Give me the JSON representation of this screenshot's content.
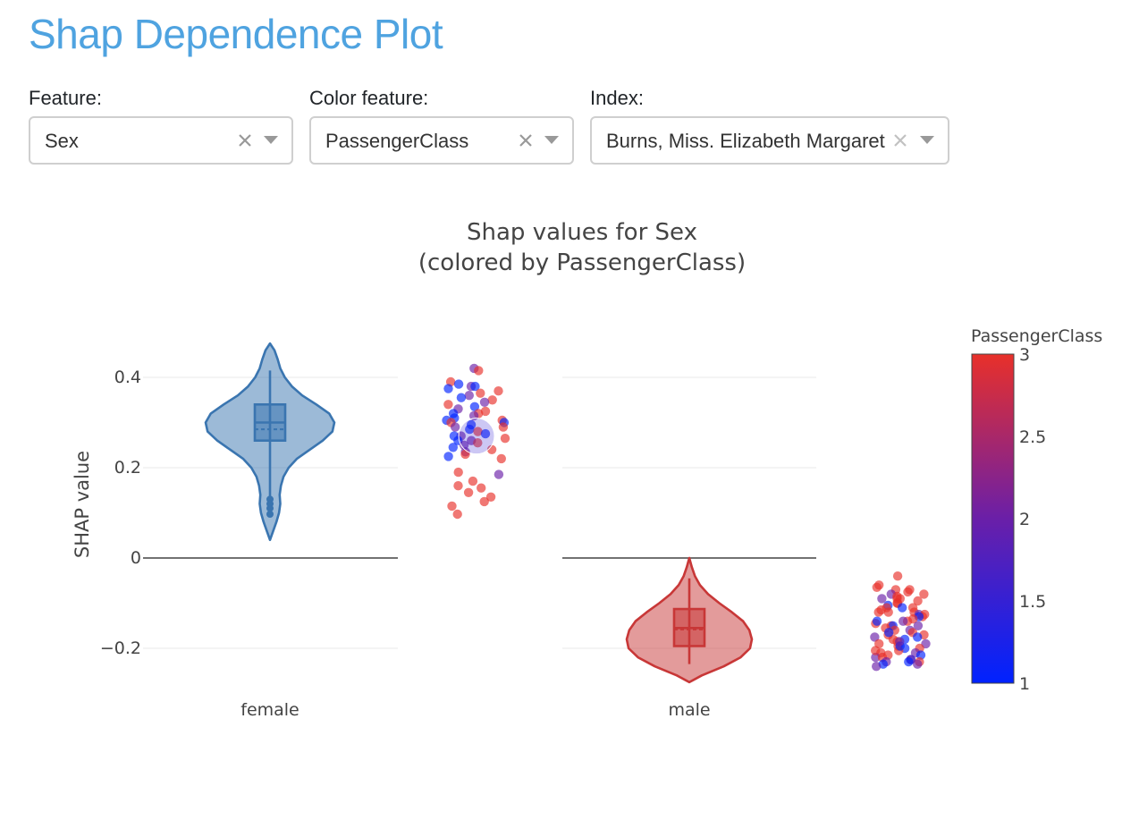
{
  "page": {
    "title": "Shap Dependence Plot"
  },
  "controls": {
    "feature": {
      "label": "Feature:",
      "value": "Sex"
    },
    "color_feature": {
      "label": "Color feature:",
      "value": "PassengerClass"
    },
    "index": {
      "label": "Index:",
      "value": "Burns, Miss. Elizabeth Margaret"
    }
  },
  "colors": {
    "title": "#4fa3e0",
    "female_violin": "#3a75b0",
    "male_violin": "#c83737",
    "colorscale_low": "#0022ff",
    "colorscale_high": "#e8302a"
  },
  "chart_data": {
    "type": "violin",
    "title": "Shap values for Sex",
    "subtitle": "(colored by PassengerClass)",
    "ylabel": "SHAP value",
    "ylim": [
      -0.28,
      0.48
    ],
    "yticks": [
      0.4,
      0.2,
      0,
      -0.2
    ],
    "ytick_labels": [
      "0.4",
      "0.2",
      "0",
      "−0.2"
    ],
    "grid": true,
    "categories": [
      "female",
      "male"
    ],
    "violins": [
      {
        "category": "female",
        "range": [
          0.04,
          0.475
        ],
        "q1": 0.26,
        "median": 0.3,
        "q3": 0.34,
        "mean": 0.285,
        "whisker_low": 0.135,
        "whisker_high": 0.415,
        "outliers": [
          0.13,
          0.12,
          0.11,
          0.097
        ],
        "density": [
          [
            0.04,
            0.0
          ],
          [
            0.06,
            0.05
          ],
          [
            0.08,
            0.1
          ],
          [
            0.1,
            0.14
          ],
          [
            0.12,
            0.16
          ],
          [
            0.14,
            0.15
          ],
          [
            0.16,
            0.17
          ],
          [
            0.18,
            0.21
          ],
          [
            0.2,
            0.29
          ],
          [
            0.22,
            0.42
          ],
          [
            0.24,
            0.62
          ],
          [
            0.26,
            0.82
          ],
          [
            0.28,
            0.97
          ],
          [
            0.3,
            1.0
          ],
          [
            0.32,
            0.92
          ],
          [
            0.34,
            0.72
          ],
          [
            0.36,
            0.5
          ],
          [
            0.38,
            0.34
          ],
          [
            0.4,
            0.23
          ],
          [
            0.42,
            0.16
          ],
          [
            0.44,
            0.12
          ],
          [
            0.46,
            0.07
          ],
          [
            0.475,
            0.0
          ]
        ]
      },
      {
        "category": "male",
        "range": [
          -0.275,
          -0.0
        ],
        "q1": -0.195,
        "median": -0.155,
        "q3": -0.113,
        "mean": -0.158,
        "whisker_low": -0.235,
        "whisker_high": -0.045,
        "outliers": [],
        "density": [
          [
            -0.275,
            0.0
          ],
          [
            -0.26,
            0.2
          ],
          [
            -0.24,
            0.55
          ],
          [
            -0.22,
            0.82
          ],
          [
            -0.2,
            0.97
          ],
          [
            -0.18,
            1.0
          ],
          [
            -0.16,
            0.96
          ],
          [
            -0.14,
            0.86
          ],
          [
            -0.12,
            0.68
          ],
          [
            -0.1,
            0.48
          ],
          [
            -0.08,
            0.3
          ],
          [
            -0.06,
            0.17
          ],
          [
            -0.04,
            0.09
          ],
          [
            -0.02,
            0.04
          ],
          [
            0.0,
            0.0
          ]
        ]
      }
    ],
    "scatter": [
      {
        "category": "female",
        "points": [
          [
            0.42,
            2
          ],
          [
            0.415,
            3
          ],
          [
            0.39,
            3
          ],
          [
            0.385,
            1
          ],
          [
            0.38,
            2
          ],
          [
            0.38,
            1
          ],
          [
            0.375,
            1
          ],
          [
            0.37,
            3
          ],
          [
            0.365,
            3
          ],
          [
            0.36,
            2
          ],
          [
            0.355,
            1
          ],
          [
            0.35,
            3
          ],
          [
            0.345,
            2
          ],
          [
            0.34,
            3
          ],
          [
            0.335,
            1
          ],
          [
            0.33,
            2
          ],
          [
            0.325,
            3
          ],
          [
            0.32,
            1
          ],
          [
            0.32,
            3
          ],
          [
            0.315,
            2
          ],
          [
            0.31,
            1
          ],
          [
            0.305,
            1
          ],
          [
            0.305,
            3
          ],
          [
            0.3,
            1
          ],
          [
            0.3,
            3
          ],
          [
            0.295,
            1
          ],
          [
            0.29,
            3
          ],
          [
            0.29,
            2
          ],
          [
            0.285,
            1
          ],
          [
            0.28,
            3
          ],
          [
            0.275,
            1
          ],
          [
            0.27,
            2
          ],
          [
            0.27,
            1
          ],
          [
            0.265,
            3
          ],
          [
            0.26,
            2
          ],
          [
            0.26,
            1
          ],
          [
            0.255,
            3
          ],
          [
            0.25,
            2
          ],
          [
            0.245,
            1
          ],
          [
            0.24,
            3
          ],
          [
            0.235,
            2
          ],
          [
            0.23,
            3
          ],
          [
            0.225,
            1
          ],
          [
            0.22,
            3
          ],
          [
            0.19,
            3
          ],
          [
            0.185,
            2
          ],
          [
            0.17,
            3
          ],
          [
            0.16,
            3
          ],
          [
            0.155,
            3
          ],
          [
            0.145,
            3
          ],
          [
            0.135,
            3
          ],
          [
            0.125,
            3
          ],
          [
            0.115,
            3
          ],
          [
            0.097,
            3
          ]
        ],
        "highlight": [
          0.27,
          1.5
        ]
      },
      {
        "category": "male",
        "points": [
          [
            -0.04,
            3
          ],
          [
            -0.06,
            3
          ],
          [
            -0.065,
            3
          ],
          [
            -0.07,
            3
          ],
          [
            -0.07,
            3
          ],
          [
            -0.075,
            3
          ],
          [
            -0.08,
            3
          ],
          [
            -0.08,
            2
          ],
          [
            -0.085,
            3
          ],
          [
            -0.09,
            3
          ],
          [
            -0.09,
            3
          ],
          [
            -0.095,
            3
          ],
          [
            -0.1,
            3
          ],
          [
            -0.1,
            3
          ],
          [
            -0.105,
            1
          ],
          [
            -0.11,
            3
          ],
          [
            -0.11,
            3
          ],
          [
            -0.115,
            3
          ],
          [
            -0.12,
            3
          ],
          [
            -0.12,
            3
          ],
          [
            -0.125,
            2
          ],
          [
            -0.125,
            3
          ],
          [
            -0.13,
            3
          ],
          [
            -0.13,
            1
          ],
          [
            -0.135,
            3
          ],
          [
            -0.14,
            3
          ],
          [
            -0.14,
            2
          ],
          [
            -0.145,
            3
          ],
          [
            -0.15,
            3
          ],
          [
            -0.15,
            1
          ],
          [
            -0.155,
            3
          ],
          [
            -0.16,
            3
          ],
          [
            -0.16,
            2
          ],
          [
            -0.165,
            3
          ],
          [
            -0.17,
            3
          ],
          [
            -0.17,
            3
          ],
          [
            -0.175,
            2
          ],
          [
            -0.18,
            3
          ],
          [
            -0.18,
            1
          ],
          [
            -0.185,
            3
          ],
          [
            -0.19,
            3
          ],
          [
            -0.19,
            2
          ],
          [
            -0.195,
            3
          ],
          [
            -0.2,
            3
          ],
          [
            -0.2,
            1
          ],
          [
            -0.205,
            3
          ],
          [
            -0.21,
            3
          ],
          [
            -0.21,
            2
          ],
          [
            -0.215,
            1
          ],
          [
            -0.215,
            3
          ],
          [
            -0.22,
            2
          ],
          [
            -0.22,
            3
          ],
          [
            -0.225,
            1
          ],
          [
            -0.225,
            2
          ],
          [
            -0.23,
            1
          ],
          [
            -0.23,
            3
          ],
          [
            -0.23,
            2
          ],
          [
            -0.235,
            2
          ],
          [
            -0.235,
            1
          ],
          [
            -0.24,
            2
          ],
          [
            -0.12,
            3
          ],
          [
            -0.205,
            3
          ],
          [
            -0.11,
            1
          ],
          [
            -0.175,
            1
          ],
          [
            -0.15,
            2
          ],
          [
            -0.09,
            2
          ],
          [
            -0.195,
            1
          ],
          [
            -0.14,
            1
          ],
          [
            -0.165,
            1
          ],
          [
            -0.185,
            2
          ]
        ]
      }
    ],
    "colorbar": {
      "title": "PassengerClass",
      "min": 1,
      "max": 3,
      "ticks": [
        1,
        1.5,
        2,
        2.5,
        3
      ],
      "tick_labels": [
        "1",
        "1.5",
        "2",
        "2.5",
        "3"
      ]
    }
  }
}
